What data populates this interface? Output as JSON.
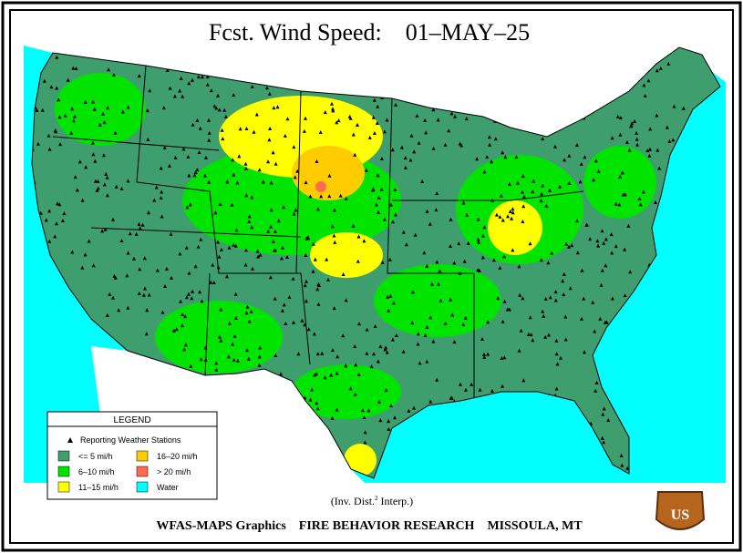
{
  "header": {
    "title": "Fcst. Wind Speed:    01–MAY–25"
  },
  "legend": {
    "title": "LEGEND",
    "stations": "Reporting Weather Stations",
    "items": [
      {
        "label": "<= 5 mi/h",
        "color": "#3f9e6e"
      },
      {
        "label": "6–10 mi/h",
        "color": "#00e400"
      },
      {
        "label": "11–15 mi/h",
        "color": "#ffff00"
      },
      {
        "label": "16–20 mi/h",
        "color": "#ffcc00"
      },
      {
        "label": "> 20 mi/h",
        "color": "#ff6a50"
      },
      {
        "label": "Water",
        "color": "#00ffff"
      }
    ]
  },
  "footer": {
    "interp": "(Inv. Dist.",
    "interp_sup": "2",
    "interp_rest": "Interp.)",
    "credits": "WFAS-MAPS Graphics    FIRE BEHAVIOR RESEARCH    MISSOULA, MT"
  },
  "logo": {
    "text": "US"
  }
}
